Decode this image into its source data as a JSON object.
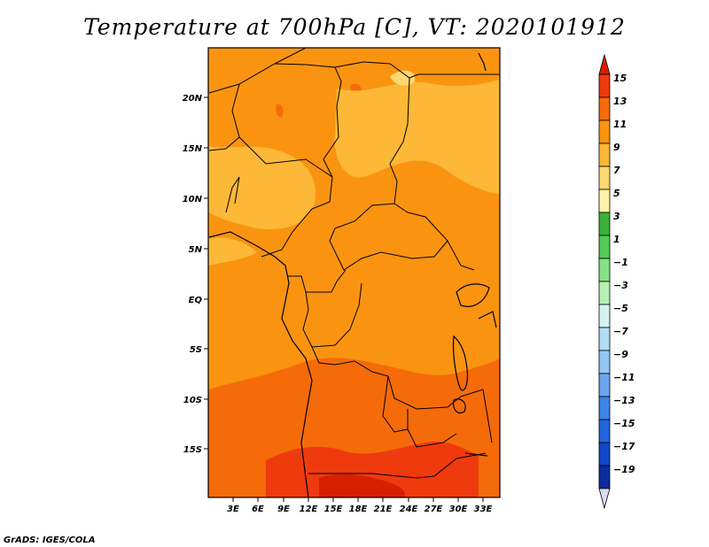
{
  "title": "Temperature at 700hPa [C], VT: 2020101912",
  "credit": "GrADS: IGES/COLA",
  "map": {
    "lon_range": [
      0,
      35
    ],
    "lat_range": [
      -20,
      24
    ],
    "lat_ticks": [
      "20N",
      "15N",
      "10N",
      "5N",
      "EQ",
      "5S",
      "10S",
      "15S"
    ],
    "lon_ticks": [
      "3E",
      "6E",
      "9E",
      "12E",
      "15E",
      "18E",
      "21E",
      "24E",
      "27E",
      "30E",
      "33E"
    ]
  },
  "colorbar": {
    "labels": [
      "15",
      "13",
      "11",
      "9",
      "7",
      "5",
      "3",
      "1",
      "−1",
      "−3",
      "−5",
      "−7",
      "−9",
      "−11",
      "−13",
      "−15",
      "−17",
      "−19"
    ],
    "colors": [
      "#d62000",
      "#ef3a0e",
      "#f56b09",
      "#fa9410",
      "#fcb836",
      "#fdd771",
      "#fdf2a6",
      "#3ab23a",
      "#55cb55",
      "#86e286",
      "#b6f0b6",
      "#d4f2f2",
      "#b1dcf6",
      "#93c6f4",
      "#6ba6ef",
      "#3d85e6",
      "#2166de",
      "#1047c8",
      "#0a2c9c",
      "#08186a"
    ]
  }
}
